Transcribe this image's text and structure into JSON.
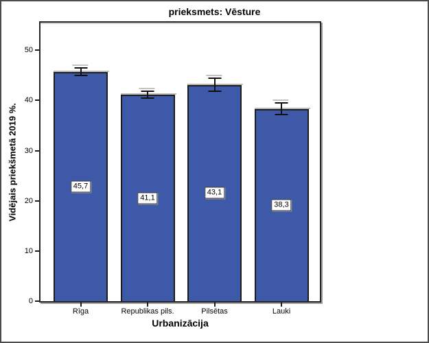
{
  "figure": {
    "background": "#ffffff",
    "border_color": "#4b4b4b"
  },
  "chart_data": {
    "type": "bar",
    "title": "prieksmets: Vēsture",
    "xlabel": "Urbanizācija",
    "ylabel": "Vidējais priekšmetā 2019 %.",
    "categories": [
      "Rīga",
      "Republikas pils.",
      "Pilsētas",
      "Lauki"
    ],
    "values": [
      45.7,
      41.1,
      43.1,
      38.3
    ],
    "value_labels": [
      "45,7",
      "41,1",
      "43,1",
      "38,3"
    ],
    "errors": [
      0.9,
      0.8,
      1.4,
      1.3
    ],
    "yticks": [
      0,
      10,
      20,
      30,
      40,
      50
    ],
    "ylim": [
      0,
      55.5
    ],
    "grid": false,
    "legend": false,
    "bar_color": "#3d59a8",
    "bar_border_color": "#1c1c1c",
    "error_bar_color": "#111111"
  }
}
